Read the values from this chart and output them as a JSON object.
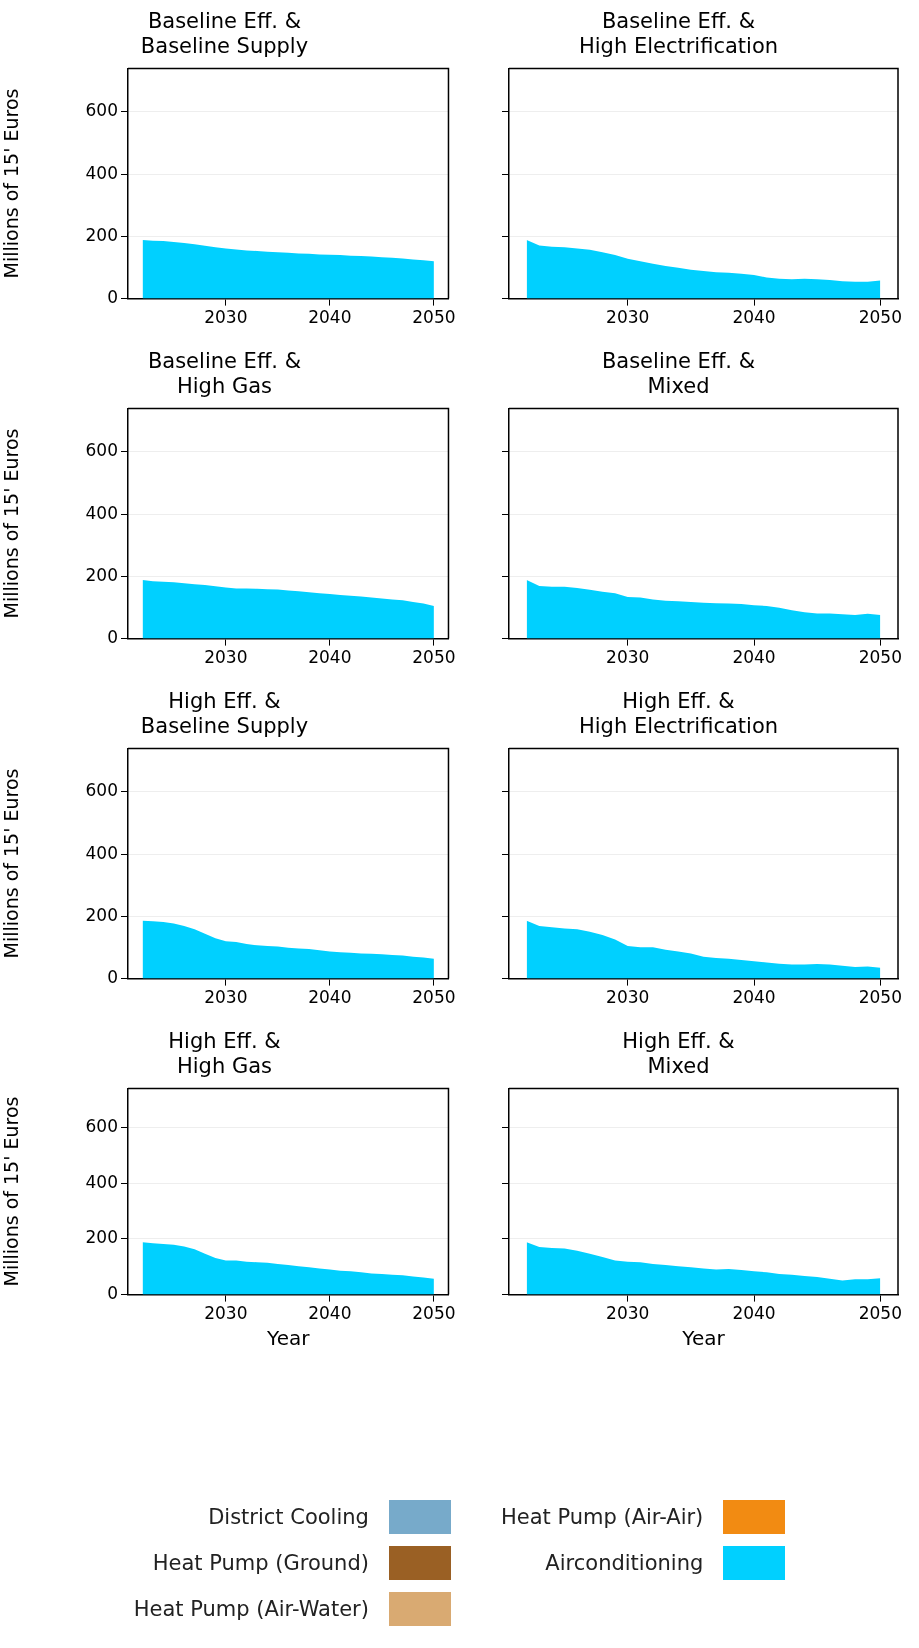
{
  "chart_data": [
    {
      "type": "area",
      "grid": "y",
      "title": "Baseline Eff. &\nBaseline Supply",
      "ylabel": "Millions of 15' Euros",
      "x": [
        2022,
        2023,
        2024,
        2025,
        2026,
        2027,
        2028,
        2029,
        2030,
        2031,
        2032,
        2033,
        2034,
        2035,
        2036,
        2037,
        2038,
        2039,
        2040,
        2041,
        2042,
        2043,
        2044,
        2045,
        2046,
        2047,
        2048,
        2049,
        2050
      ],
      "xlim": [
        2020.6,
        2051.4
      ],
      "xticks": [
        2030,
        2040,
        2050
      ],
      "ylim": [
        0,
        740
      ],
      "yticks": [
        0,
        200,
        400,
        600
      ],
      "series": [
        {
          "color": "#00d0ff",
          "values": [
            188,
            186,
            185,
            182,
            179,
            175,
            170,
            165,
            161,
            158,
            155,
            153,
            151,
            149,
            147,
            145,
            144,
            142,
            141,
            140,
            138,
            137,
            135,
            133,
            131,
            129,
            126,
            123,
            120
          ]
        }
      ]
    },
    {
      "type": "area",
      "grid": "y",
      "tick_labels": "x",
      "title": "Baseline Eff. &\nHigh Electrification",
      "x": [
        2022,
        2023,
        2024,
        2025,
        2026,
        2027,
        2028,
        2029,
        2030,
        2031,
        2032,
        2033,
        2034,
        2035,
        2036,
        2037,
        2038,
        2039,
        2040,
        2041,
        2042,
        2043,
        2044,
        2045,
        2046,
        2047,
        2048,
        2049,
        2050
      ],
      "xlim": [
        2020.6,
        2051.4
      ],
      "xticks": [
        2030,
        2040,
        2050
      ],
      "ylim": [
        0,
        740
      ],
      "yticks": [
        0,
        200,
        400,
        600
      ],
      "series": [
        {
          "color": "#00d0ff",
          "values": [
            188,
            171,
            167,
            165,
            161,
            157,
            149,
            140,
            128,
            120,
            112,
            105,
            99,
            93,
            89,
            85,
            83,
            80,
            76,
            68,
            64,
            62,
            64,
            62,
            60,
            56,
            54,
            54,
            58
          ]
        }
      ]
    },
    {
      "type": "area",
      "grid": "y",
      "title": "Baseline Eff. &\nHigh Gas",
      "ylabel": "Millions of 15' Euros",
      "x": [
        2022,
        2023,
        2024,
        2025,
        2026,
        2027,
        2028,
        2029,
        2030,
        2031,
        2032,
        2033,
        2034,
        2035,
        2036,
        2037,
        2038,
        2039,
        2040,
        2041,
        2042,
        2043,
        2044,
        2045,
        2046,
        2047,
        2048,
        2049,
        2050
      ],
      "xlim": [
        2020.6,
        2051.4
      ],
      "xticks": [
        2030,
        2040,
        2050
      ],
      "ylim": [
        0,
        740
      ],
      "yticks": [
        0,
        200,
        400,
        600
      ],
      "series": [
        {
          "color": "#00d0ff",
          "values": [
            188,
            184,
            183,
            181,
            178,
            175,
            172,
            168,
            164,
            161,
            161,
            160,
            159,
            158,
            155,
            152,
            149,
            146,
            143,
            140,
            138,
            135,
            132,
            129,
            126,
            123,
            118,
            113,
            105
          ]
        }
      ]
    },
    {
      "type": "area",
      "grid": "y",
      "tick_labels": "x",
      "title": "Baseline Eff. &\nMixed",
      "x": [
        2022,
        2023,
        2024,
        2025,
        2026,
        2027,
        2028,
        2029,
        2030,
        2031,
        2032,
        2033,
        2034,
        2035,
        2036,
        2037,
        2038,
        2039,
        2040,
        2041,
        2042,
        2043,
        2044,
        2045,
        2046,
        2047,
        2048,
        2049,
        2050
      ],
      "xlim": [
        2020.6,
        2051.4
      ],
      "xticks": [
        2030,
        2040,
        2050
      ],
      "ylim": [
        0,
        740
      ],
      "yticks": [
        0,
        200,
        400,
        600
      ],
      "series": [
        {
          "color": "#00d0ff",
          "values": [
            188,
            169,
            167,
            167,
            163,
            157,
            151,
            146,
            134,
            132,
            126,
            122,
            120,
            118,
            115,
            114,
            113,
            111,
            107,
            105,
            99,
            91,
            85,
            81,
            81,
            78,
            76,
            80,
            76
          ]
        }
      ]
    },
    {
      "type": "area",
      "grid": "y",
      "title": "High Eff. &\nBaseline Supply",
      "ylabel": "Millions of 15' Euros",
      "x": [
        2022,
        2023,
        2024,
        2025,
        2026,
        2027,
        2028,
        2029,
        2030,
        2031,
        2032,
        2033,
        2034,
        2035,
        2036,
        2037,
        2038,
        2039,
        2040,
        2041,
        2042,
        2043,
        2044,
        2045,
        2046,
        2047,
        2048,
        2049,
        2050
      ],
      "xlim": [
        2020.6,
        2051.4
      ],
      "xticks": [
        2030,
        2040,
        2050
      ],
      "ylim": [
        0,
        740
      ],
      "yticks": [
        0,
        200,
        400,
        600
      ],
      "series": [
        {
          "color": "#00d0ff",
          "values": [
            186,
            184,
            182,
            177,
            169,
            159,
            144,
            130,
            120,
            118,
            111,
            107,
            105,
            103,
            99,
            97,
            95,
            91,
            87,
            85,
            83,
            81,
            80,
            78,
            76,
            74,
            70,
            68,
            64
          ]
        }
      ]
    },
    {
      "type": "area",
      "grid": "y",
      "tick_labels": "x",
      "title": "High Eff. &\nHigh Electrification",
      "x": [
        2022,
        2023,
        2024,
        2025,
        2026,
        2027,
        2028,
        2029,
        2030,
        2031,
        2032,
        2033,
        2034,
        2035,
        2036,
        2037,
        2038,
        2039,
        2040,
        2041,
        2042,
        2043,
        2044,
        2045,
        2046,
        2047,
        2048,
        2049,
        2050
      ],
      "xlim": [
        2020.6,
        2051.4
      ],
      "xticks": [
        2030,
        2040,
        2050
      ],
      "ylim": [
        0,
        740
      ],
      "yticks": [
        0,
        200,
        400,
        600
      ],
      "series": [
        {
          "color": "#00d0ff",
          "values": [
            186,
            169,
            165,
            161,
            159,
            151,
            140,
            126,
            105,
            101,
            101,
            93,
            87,
            81,
            70,
            66,
            64,
            60,
            56,
            52,
            48,
            45,
            45,
            47,
            45,
            41,
            37,
            39,
            35
          ]
        }
      ]
    },
    {
      "type": "area",
      "grid": "y",
      "title": "High Eff. &\nHigh Gas",
      "ylabel": "Millions of 15' Euros",
      "xlabel": "Year",
      "x": [
        2022,
        2023,
        2024,
        2025,
        2026,
        2027,
        2028,
        2029,
        2030,
        2031,
        2032,
        2033,
        2034,
        2035,
        2036,
        2037,
        2038,
        2039,
        2040,
        2041,
        2042,
        2043,
        2044,
        2045,
        2046,
        2047,
        2048,
        2049,
        2050
      ],
      "xlim": [
        2020.6,
        2051.4
      ],
      "xticks": [
        2030,
        2040,
        2050
      ],
      "ylim": [
        0,
        740
      ],
      "yticks": [
        0,
        200,
        400,
        600
      ],
      "series": [
        {
          "color": "#00d0ff",
          "values": [
            188,
            184,
            182,
            179,
            173,
            163,
            147,
            131,
            122,
            122,
            118,
            116,
            114,
            110,
            106,
            102,
            98,
            94,
            90,
            86,
            84,
            80,
            76,
            74,
            71,
            69,
            65,
            61,
            57
          ]
        }
      ]
    },
    {
      "type": "area",
      "grid": "y",
      "tick_labels": "x",
      "legend": "bottom",
      "title": "High Eff. &\nMixed",
      "xlabel": "Year",
      "x": [
        2022,
        2023,
        2024,
        2025,
        2026,
        2027,
        2028,
        2029,
        2030,
        2031,
        2032,
        2033,
        2034,
        2035,
        2036,
        2037,
        2038,
        2039,
        2040,
        2041,
        2042,
        2043,
        2044,
        2045,
        2046,
        2047,
        2048,
        2049,
        2050
      ],
      "xlim": [
        2020.6,
        2051.4
      ],
      "xticks": [
        2030,
        2040,
        2050
      ],
      "ylim": [
        0,
        740
      ],
      "yticks": [
        0,
        200,
        400,
        600
      ],
      "series": [
        {
          "name": "District Cooling",
          "color": "#77aaca",
          "values": [
            null,
            null,
            null,
            null,
            null,
            null,
            null,
            null,
            null,
            null,
            null,
            null,
            null,
            null,
            null,
            null,
            null,
            null,
            null,
            null,
            null,
            null,
            null,
            null,
            null,
            null,
            null,
            null,
            null
          ]
        },
        {
          "name": "Heat Pump (Ground)",
          "color": "#9a6024",
          "values": [
            null,
            null,
            null,
            null,
            null,
            null,
            null,
            null,
            null,
            null,
            null,
            null,
            null,
            null,
            null,
            null,
            null,
            null,
            null,
            null,
            null,
            null,
            null,
            null,
            null,
            null,
            null,
            null,
            null
          ]
        },
        {
          "name": "Heat Pump (Air-Water)",
          "color": "#d9aa72",
          "values": [
            null,
            null,
            null,
            null,
            null,
            null,
            null,
            null,
            null,
            null,
            null,
            null,
            null,
            null,
            null,
            null,
            null,
            null,
            null,
            null,
            null,
            null,
            null,
            null,
            null,
            null,
            null,
            null,
            null
          ]
        },
        {
          "name": "Heat Pump (Air-Air)",
          "color": "#f28b12",
          "values": [
            null,
            null,
            null,
            null,
            null,
            null,
            null,
            null,
            null,
            null,
            null,
            null,
            null,
            null,
            null,
            null,
            null,
            null,
            null,
            null,
            null,
            null,
            null,
            null,
            null,
            null,
            null,
            null,
            null
          ]
        },
        {
          "name": "Airconditioning",
          "color": "#00d0ff",
          "values": [
            188,
            171,
            167,
            165,
            157,
            147,
            135,
            122,
            118,
            116,
            110,
            106,
            102,
            98,
            94,
            90,
            92,
            88,
            84,
            80,
            74,
            71,
            67,
            63,
            57,
            51,
            55,
            55,
            59
          ]
        }
      ]
    }
  ]
}
